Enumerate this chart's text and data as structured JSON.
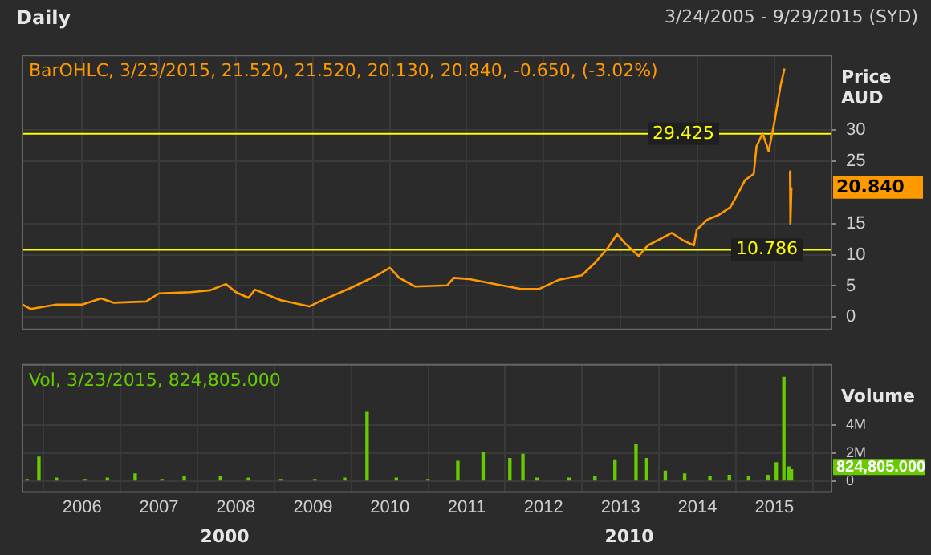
{
  "chart_data": [
    {
      "type": "line",
      "title": "Daily",
      "subtitle": "BarOHLC, 3/23/2015, 21.520, 21.520, 20.130, 20.840, -0.650, (-3.02%)",
      "ylabel": "Price AUD",
      "annotations": [
        "3/24/2005 - 9/29/2015 (SYD)",
        "20.840"
      ],
      "x": [
        "2005-03-24",
        "2005-05-01",
        "2005-09-01",
        "2006-01-01",
        "2006-04-01",
        "2006-06-01",
        "2006-11-01",
        "2007-01-01",
        "2007-06-01",
        "2007-09-01",
        "2007-11-15",
        "2008-01-01",
        "2008-03-01",
        "2008-04-01",
        "2008-08-01",
        "2008-12-15",
        "2009-02-01",
        "2009-07-01",
        "2009-11-01",
        "2010-01-01",
        "2010-02-15",
        "2010-05-01",
        "2010-10-01",
        "2010-11-01",
        "2011-01-15",
        "2011-06-01",
        "2011-09-15",
        "2011-12-10",
        "2012-03-15",
        "2012-07-01",
        "2012-09-01",
        "2012-11-01",
        "2012-12-15",
        "2013-01-20",
        "2013-03-28",
        "2013-05-10",
        "2013-09-01",
        "2013-10-25",
        "2013-12-15",
        "2013-12-28",
        "2014-02-15",
        "2014-04-12",
        "2014-06-05",
        "2014-07-15",
        "2014-08-15",
        "2014-09-25",
        "2014-10-08",
        "2014-11-06",
        "2014-12-05",
        "2015-01-02",
        "2015-01-30",
        "2015-02-18",
        "2015-03-01",
        "2015-03-16",
        "2015-03-18",
        "2015-03-23"
      ],
      "series": [
        {
          "color": "#ff9900",
          "values": [
            2.0,
            1.3,
            2.0,
            2.0,
            3.0,
            2.3,
            2.5,
            3.8,
            4.0,
            4.3,
            5.3,
            4.0,
            3.1,
            4.4,
            2.7,
            1.7,
            2.5,
            4.7,
            6.7,
            7.9,
            6.3,
            4.9,
            5.1,
            6.3,
            6.1,
            5.2,
            4.5,
            4.5,
            6.0,
            6.7,
            8.7,
            11.1,
            13.3,
            11.9,
            9.8,
            11.5,
            13.5,
            12.3,
            11.5,
            14.0,
            15.6,
            16.4,
            17.6,
            20.0,
            22.0,
            23.0,
            27.4,
            29.5,
            26.6,
            31.5,
            37.1,
            39.9,
            null,
            23.4,
            15.0,
            20.8
          ]
        }
      ],
      "xlim": [
        "2005-03-24",
        "2015-09-29"
      ],
      "xticks": [
        {
          "value": "2006-01-01",
          "label": null
        },
        {
          "value": "2007-01-01",
          "label": null
        },
        {
          "value": "2008-01-01",
          "label": null
        },
        {
          "value": "2009-01-01",
          "label": null
        },
        {
          "value": "2010-01-01",
          "label": null
        },
        {
          "value": "2011-01-01",
          "label": null
        },
        {
          "value": "2012-01-01",
          "label": null
        },
        {
          "value": "2013-01-01",
          "label": null
        },
        {
          "value": "2014-01-01",
          "label": null
        },
        {
          "value": "2015-01-01",
          "label": null
        }
      ],
      "ylim": [
        -2,
        42
      ],
      "yticks": [
        0,
        5,
        10,
        15,
        25,
        30
      ],
      "ref_lines": [
        {
          "axis": "y",
          "value": 29.425,
          "label": "29.425",
          "color": "#ffff00"
        },
        {
          "axis": "y",
          "value": 10.786,
          "label": "10.786",
          "color": "#ffff00"
        }
      ],
      "grid": true,
      "tick_labels": "y"
    },
    {
      "type": "bar",
      "subtitle": "Vol, 3/23/2015, 824,805.000",
      "ylabel": "Volume",
      "annotations": [
        "824,805.000",
        "2000",
        "2010"
      ],
      "x": [
        "2005-04-15",
        "2005-06-10",
        "2005-09-01",
        "2006-01-15",
        "2006-05-01",
        "2006-09-10",
        "2007-01-15",
        "2007-05-01",
        "2007-10-20",
        "2008-03-01",
        "2008-08-01",
        "2009-01-10",
        "2009-06-01",
        "2009-09-15",
        "2010-02-01",
        "2010-07-01",
        "2010-11-20",
        "2011-03-20",
        "2011-07-25",
        "2011-09-25",
        "2011-12-01",
        "2012-05-01",
        "2012-09-01",
        "2012-12-05",
        "2013-03-15",
        "2013-05-05",
        "2013-08-01",
        "2013-11-01",
        "2014-03-01",
        "2014-06-01",
        "2014-09-01",
        "2014-12-01",
        "2015-01-10",
        "2015-02-15",
        "2015-03-10",
        "2015-03-23"
      ],
      "series": [
        {
          "color": "#66cc00",
          "values": [
            100000,
            1700000,
            200000,
            100000,
            200000,
            500000,
            100000,
            300000,
            300000,
            200000,
            100000,
            100000,
            200000,
            4900000,
            200000,
            100000,
            1400000,
            2000000,
            1600000,
            1900000,
            200000,
            200000,
            300000,
            1500000,
            2600000,
            1600000,
            700000,
            500000,
            300000,
            400000,
            300000,
            400000,
            1300000,
            7400000,
            1000000,
            800000
          ]
        }
      ],
      "xlim": [
        "2005-03-24",
        "2015-09-29"
      ],
      "xticks": [
        {
          "value": "2006-01-01",
          "label": "2006"
        },
        {
          "value": "2007-01-01",
          "label": "2007"
        },
        {
          "value": "2008-01-01",
          "label": "2008"
        },
        {
          "value": "2009-01-01",
          "label": "2009"
        },
        {
          "value": "2010-01-01",
          "label": "2010"
        },
        {
          "value": "2011-01-01",
          "label": "2011"
        },
        {
          "value": "2012-01-01",
          "label": "2012"
        },
        {
          "value": "2013-01-01",
          "label": "2013"
        },
        {
          "value": "2014-01-01",
          "label": "2014"
        },
        {
          "value": "2015-01-01",
          "label": "2015"
        }
      ],
      "ylim": [
        -800000,
        8300000
      ],
      "yticks": [
        0,
        {
          "value": 2000000,
          "label": "2M"
        },
        {
          "value": 4000000,
          "label": "4M"
        }
      ],
      "grid": true
    }
  ]
}
